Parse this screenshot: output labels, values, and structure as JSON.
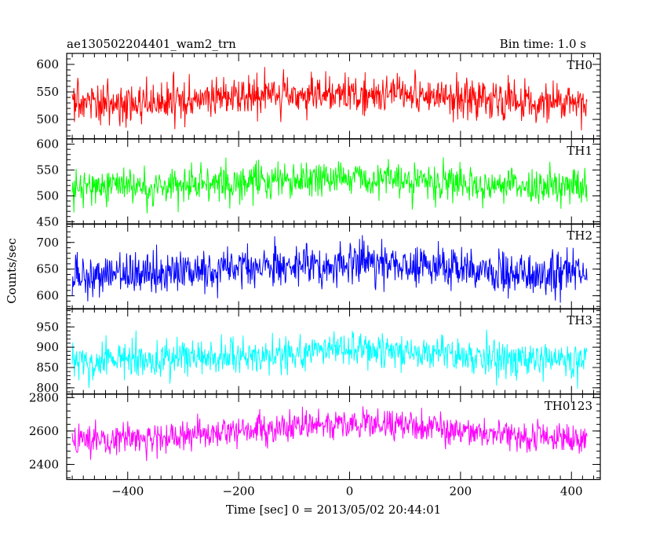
{
  "header": {
    "left": "ae130502204401_wam2_trn",
    "right": "Bin time: 1.0 s"
  },
  "chart_data": {
    "type": "line",
    "xlabel": "Time [sec] 0 = 2013/05/02 20:44:01",
    "ylabel": "Counts/sec",
    "xlim": [
      -510,
      452
    ],
    "x_step": 1,
    "x_range": [
      -500,
      428
    ],
    "x_ticks": [
      -400,
      -200,
      0,
      200,
      400
    ],
    "x_tick_labels": [
      "−400",
      "−200",
      "0",
      "200",
      "400"
    ],
    "panels": [
      {
        "label": "TH0",
        "color": "#ff0000",
        "ylim": [
          465,
          620
        ],
        "y_ticks": [
          500,
          550,
          600
        ],
        "y_tick_labels": [
          "500",
          "550",
          "600"
        ],
        "baseline": 528,
        "hump": 20,
        "noise_sd": 22,
        "approx_range": [
          465,
          620
        ]
      },
      {
        "label": "TH1",
        "color": "#00ff00",
        "ylim": [
          445,
          610
        ],
        "y_ticks": [
          450,
          500,
          550,
          600
        ],
        "y_tick_labels": [
          "450",
          "500",
          "550",
          "600"
        ],
        "baseline": 515,
        "hump": 20,
        "noise_sd": 22,
        "approx_range": [
          455,
          600
        ]
      },
      {
        "label": "TH2",
        "color": "#0000ff",
        "ylim": [
          575,
          735
        ],
        "y_ticks": [
          600,
          650,
          700
        ],
        "y_tick_labels": [
          "600",
          "650",
          "700"
        ],
        "baseline": 638,
        "hump": 22,
        "noise_sd": 24,
        "approx_range": [
          578,
          735
        ]
      },
      {
        "label": "TH3",
        "color": "#00ffff",
        "ylim": [
          785,
          995
        ],
        "y_ticks": [
          800,
          850,
          900,
          950
        ],
        "y_tick_labels": [
          "800",
          "850",
          "900",
          "950"
        ],
        "baseline": 865,
        "hump": 28,
        "noise_sd": 28,
        "approx_range": [
          790,
          990
        ]
      },
      {
        "label": "TH0123",
        "color": "#ff00ff",
        "ylim": [
          2310,
          2820
        ],
        "y_ticks": [
          2400,
          2600,
          2800
        ],
        "y_tick_labels": [
          "2400",
          "2600",
          "2800"
        ],
        "baseline": 2545,
        "hump": 100,
        "noise_sd": 55,
        "approx_range": [
          2320,
          2820
        ]
      }
    ],
    "grid": false,
    "legend": "none"
  }
}
